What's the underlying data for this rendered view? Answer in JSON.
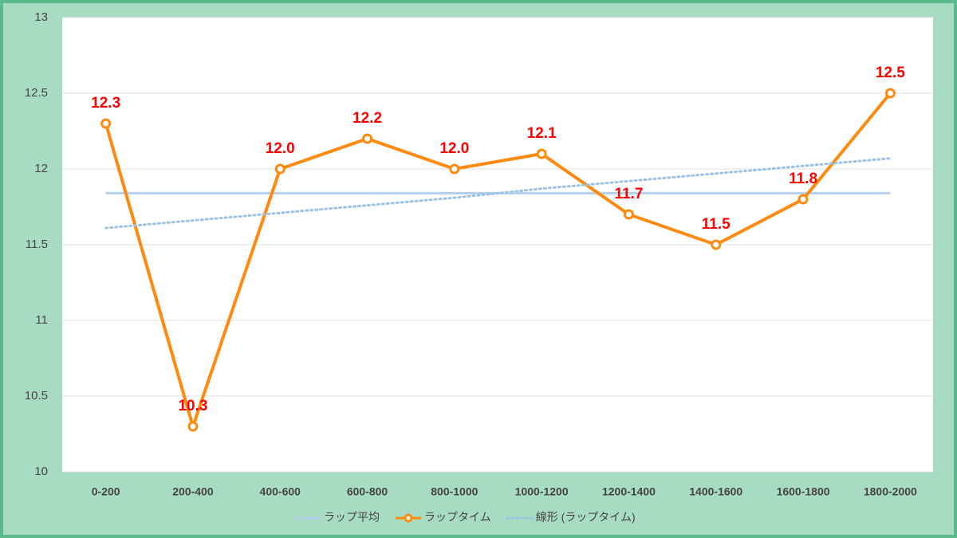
{
  "chart_data": {
    "type": "line",
    "categories": [
      "0-200",
      "200-400",
      "400-600",
      "600-800",
      "800-1000",
      "1000-1200",
      "1200-1400",
      "1400-1600",
      "1600-1800",
      "1800-2000"
    ],
    "series": [
      {
        "name": "ラップ平均",
        "color": "#b4cfe9",
        "style": "solid",
        "values": [
          11.84,
          11.84,
          11.84,
          11.84,
          11.84,
          11.84,
          11.84,
          11.84,
          11.84,
          11.84
        ]
      },
      {
        "name": "ラップタイム",
        "color": "#ff8a10",
        "style": "marker",
        "values": [
          12.3,
          10.3,
          12.0,
          12.2,
          12.0,
          12.1,
          11.7,
          11.5,
          11.8,
          12.5
        ],
        "value_labels": [
          "12.3",
          "10.3",
          "12.0",
          "12.2",
          "12.0",
          "12.1",
          "11.7",
          "11.5",
          "11.8",
          "12.5"
        ],
        "label_color": "#ff0000"
      },
      {
        "name": "線形 (ラップタイム)",
        "color": "#9cc3e4",
        "style": "dotted",
        "values": [
          11.61,
          11.66,
          11.71,
          11.76,
          11.81,
          11.87,
          11.92,
          11.97,
          12.02,
          12.07
        ]
      }
    ],
    "ylim": [
      10,
      13
    ],
    "yticks": [
      10,
      10.5,
      11,
      11.5,
      12,
      12.5,
      13
    ],
    "grid": true,
    "legend": "bottom"
  }
}
